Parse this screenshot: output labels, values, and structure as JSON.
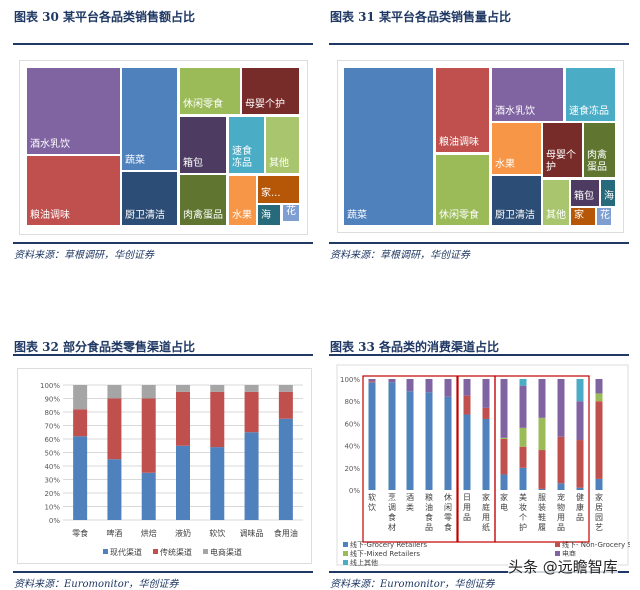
{
  "figures": [
    {
      "title": "图表 30   某平台各品类销售额占比",
      "source": "资料来源：草根调研，华创证券"
    },
    {
      "title": "图表 31   某平台各品类销售量占比",
      "source": "资料来源：草根调研，华创证券"
    },
    {
      "title": "图表 32   部分食品类零售渠道占比",
      "source": "资料来源：Euromonitor，华创证券"
    },
    {
      "title": "图表 33   各品类的消费渠道占比",
      "source": "资料来源：Euromonitor，华创证券"
    }
  ],
  "watermark": "头条 @远瞻智库",
  "chart_data": [
    {
      "type": "treemap",
      "title": "",
      "tiles": [
        {
          "label": "酒水乳饮",
          "color": "#8064a2"
        },
        {
          "label": "粮油调味",
          "color": "#c0504d"
        },
        {
          "label": "蔬菜",
          "color": "#4f81bd"
        },
        {
          "label": "厨卫清洁",
          "color": "#2c4d75"
        },
        {
          "label": "休闲零食",
          "color": "#9bbb59"
        },
        {
          "label": "母婴个护",
          "color": "#772c2a"
        },
        {
          "label": "箱包",
          "color": "#4d3b62"
        },
        {
          "label": "速食冻品",
          "color": "#4bacc6"
        },
        {
          "label": "其他",
          "color": "#a9c66f"
        },
        {
          "label": "肉禽蛋品",
          "color": "#5f7530"
        },
        {
          "label": "水果",
          "color": "#f79646"
        },
        {
          "label": "家...",
          "color": "#b65708"
        },
        {
          "label": "海",
          "color": "#276a7c"
        },
        {
          "label": "花",
          "color": "#7f9fd3"
        }
      ]
    },
    {
      "type": "treemap",
      "title": "",
      "tiles": [
        {
          "label": "蔬菜",
          "color": "#4f81bd"
        },
        {
          "label": "粮油调味",
          "color": "#c0504d"
        },
        {
          "label": "休闲零食",
          "color": "#9bbb59"
        },
        {
          "label": "酒水乳饮",
          "color": "#8064a2"
        },
        {
          "label": "速食冻品",
          "color": "#4bacc6"
        },
        {
          "label": "水果",
          "color": "#f79646"
        },
        {
          "label": "厨卫清洁",
          "color": "#2c4d75"
        },
        {
          "label": "母婴个护",
          "color": "#772c2a"
        },
        {
          "label": "肉禽蛋品",
          "color": "#5f7530"
        },
        {
          "label": "其他",
          "color": "#a9c66f"
        },
        {
          "label": "箱包",
          "color": "#4d3b62"
        },
        {
          "label": "海",
          "color": "#276a7c"
        },
        {
          "label": "家",
          "color": "#b65708"
        },
        {
          "label": "花",
          "color": "#7f9fd3"
        }
      ]
    },
    {
      "type": "bar",
      "stacked": true,
      "categories": [
        "零食",
        "啤酒",
        "烘焙",
        "液奶",
        "软饮",
        "调味品",
        "食用油"
      ],
      "yticks": [
        "0%",
        "10%",
        "20%",
        "30%",
        "40%",
        "50%",
        "60%",
        "70%",
        "80%",
        "90%",
        "100%"
      ],
      "ylim": [
        0,
        100
      ],
      "grid": true,
      "legend": "bottom",
      "series": [
        {
          "name": "现代渠道",
          "color": "#4f81bd",
          "values": [
            62,
            45,
            35,
            55,
            54,
            65,
            75
          ]
        },
        {
          "name": "传统渠道",
          "color": "#c0504d",
          "values": [
            20,
            45,
            55,
            40,
            41,
            30,
            20
          ]
        },
        {
          "name": "电商渠道",
          "color": "#a5a5a5",
          "values": [
            18,
            10,
            10,
            5,
            5,
            5,
            5
          ]
        }
      ]
    },
    {
      "type": "bar",
      "stacked": true,
      "categories": [
        "软饮",
        "烹调食材",
        "酒类",
        "粮油食品",
        "休闲零食",
        "日用品",
        "家庭用纸",
        "家电",
        "美妆个护",
        "服装鞋履",
        "宠物用品",
        "健康品",
        "家居园艺"
      ],
      "yticks": [
        "0%",
        "20%",
        "40%",
        "60%",
        "80%",
        "100%"
      ],
      "ylim": [
        0,
        100
      ],
      "grid": false,
      "legend": "bottom",
      "groups": [
        [
          0,
          4
        ],
        [
          5,
          6
        ],
        [
          7,
          11
        ]
      ],
      "series": [
        {
          "name": "线下-Grocery Retailers",
          "color": "#4f81bd",
          "values": [
            97,
            97,
            89,
            88,
            84,
            68,
            64,
            14,
            20,
            1,
            6,
            2,
            10
          ]
        },
        {
          "name": "线下- Non-Grocery Specialists",
          "color": "#c0504d",
          "values": [
            1,
            0,
            0,
            0,
            0,
            17,
            10,
            32,
            19,
            35,
            42,
            43,
            70
          ]
        },
        {
          "name": "线下-Mixed Retailers",
          "color": "#9bbb59",
          "values": [
            0,
            0,
            0,
            0,
            0,
            0,
            0,
            1,
            17,
            29,
            0,
            0,
            7
          ]
        },
        {
          "name": "电商",
          "color": "#8064a2",
          "values": [
            2,
            3,
            11,
            12,
            16,
            15,
            26,
            53,
            38,
            35,
            52,
            35,
            13
          ]
        },
        {
          "name": "线上其他",
          "color": "#4bacc6",
          "values": [
            0,
            0,
            0,
            0,
            0,
            0,
            0,
            0,
            6,
            0,
            0,
            20,
            0
          ]
        }
      ]
    }
  ]
}
